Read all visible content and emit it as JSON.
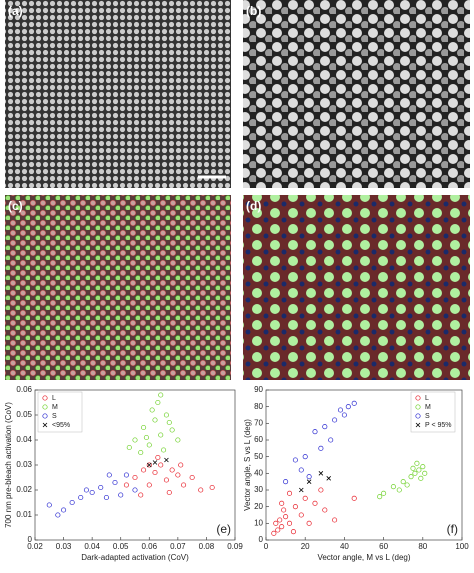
{
  "images": [
    {
      "label": "(a)"
    },
    {
      "label": "(b)"
    },
    {
      "label": "(c)"
    },
    {
      "label": "(d)"
    }
  ],
  "chart_data": [
    {
      "type": "scatter",
      "panel_label": "(e)",
      "x_label": "Dark-adapted activation (CoV)",
      "y_label": "700 nm pre-bleach activation (CoV)",
      "xlim": [
        0.02,
        0.09
      ],
      "xticks": [
        0.02,
        0.03,
        0.04,
        0.05,
        0.06,
        0.07,
        0.08,
        0.09
      ],
      "ylim": [
        0,
        0.06
      ],
      "yticks": [
        0,
        0.01,
        0.02,
        0.03,
        0.04,
        0.05,
        0.06
      ],
      "legend": "upper-left",
      "series": [
        {
          "name": "L",
          "color": "#e8202a",
          "marker": "circle",
          "x": [
            0.055,
            0.058,
            0.06,
            0.062,
            0.064,
            0.066,
            0.068,
            0.07,
            0.072,
            0.075,
            0.078,
            0.082,
            0.063,
            0.06,
            0.067,
            0.052,
            0.057,
            0.071
          ],
          "values": [
            0.025,
            0.028,
            0.022,
            0.027,
            0.03,
            0.024,
            0.028,
            0.026,
            0.022,
            0.025,
            0.02,
            0.021,
            0.033,
            0.03,
            0.019,
            0.022,
            0.018,
            0.03
          ]
        },
        {
          "name": "M",
          "color": "#6fd12a",
          "marker": "circle",
          "x": [
            0.055,
            0.058,
            0.06,
            0.062,
            0.064,
            0.066,
            0.068,
            0.063,
            0.07,
            0.057,
            0.061,
            0.065,
            0.059,
            0.067,
            0.053,
            0.064
          ],
          "values": [
            0.04,
            0.045,
            0.038,
            0.048,
            0.042,
            0.05,
            0.044,
            0.055,
            0.04,
            0.035,
            0.052,
            0.036,
            0.041,
            0.047,
            0.037,
            0.058
          ]
        },
        {
          "name": "S",
          "color": "#2a2ad1",
          "marker": "circle",
          "x": [
            0.025,
            0.03,
            0.033,
            0.036,
            0.04,
            0.043,
            0.045,
            0.048,
            0.05,
            0.052,
            0.038,
            0.028,
            0.046,
            0.055
          ],
          "values": [
            0.014,
            0.012,
            0.015,
            0.017,
            0.019,
            0.021,
            0.017,
            0.023,
            0.018,
            0.026,
            0.02,
            0.01,
            0.026,
            0.02
          ]
        },
        {
          "name": "<95%",
          "color": "#000000",
          "marker": "x",
          "x": [
            0.062,
            0.066,
            0.06
          ],
          "values": [
            0.031,
            0.032,
            0.03
          ]
        }
      ]
    },
    {
      "type": "scatter",
      "panel_label": "(f)",
      "x_label": "Vector angle, M vs L (deg)",
      "y_label": "Vector angle, S vs L (deg)",
      "xlim": [
        0,
        100
      ],
      "xticks": [
        0,
        20,
        40,
        60,
        80,
        100
      ],
      "ylim": [
        0,
        90
      ],
      "yticks": [
        0,
        10,
        20,
        30,
        40,
        50,
        60,
        70,
        80,
        90
      ],
      "legend": "upper-right",
      "series": [
        {
          "name": "L",
          "color": "#e8202a",
          "marker": "circle",
          "x": [
            5,
            7,
            8,
            10,
            6,
            12,
            9,
            15,
            18,
            20,
            25,
            28,
            12,
            30,
            35,
            22,
            4,
            14,
            8,
            45
          ],
          "values": [
            10,
            12,
            8,
            14,
            6,
            10,
            18,
            20,
            15,
            25,
            22,
            30,
            28,
            18,
            12,
            10,
            4,
            5,
            22,
            25
          ]
        },
        {
          "name": "M",
          "color": "#6fd12a",
          "marker": "circle",
          "x": [
            60,
            65,
            70,
            74,
            76,
            78,
            80,
            79,
            77,
            72,
            68,
            58,
            81,
            75
          ],
          "values": [
            28,
            32,
            35,
            38,
            40,
            42,
            44,
            37,
            46,
            33,
            30,
            26,
            40,
            43
          ]
        },
        {
          "name": "S",
          "color": "#2a2ad1",
          "marker": "circle",
          "x": [
            15,
            18,
            20,
            25,
            30,
            35,
            38,
            42,
            45,
            40,
            28,
            22,
            10,
            33
          ],
          "values": [
            48,
            42,
            50,
            65,
            68,
            72,
            78,
            80,
            82,
            75,
            55,
            38,
            35,
            60
          ]
        },
        {
          "name": "P < 95%",
          "color": "#000000",
          "marker": "x",
          "x": [
            28,
            22,
            32,
            18
          ],
          "values": [
            40,
            35,
            37,
            30
          ]
        }
      ]
    }
  ]
}
